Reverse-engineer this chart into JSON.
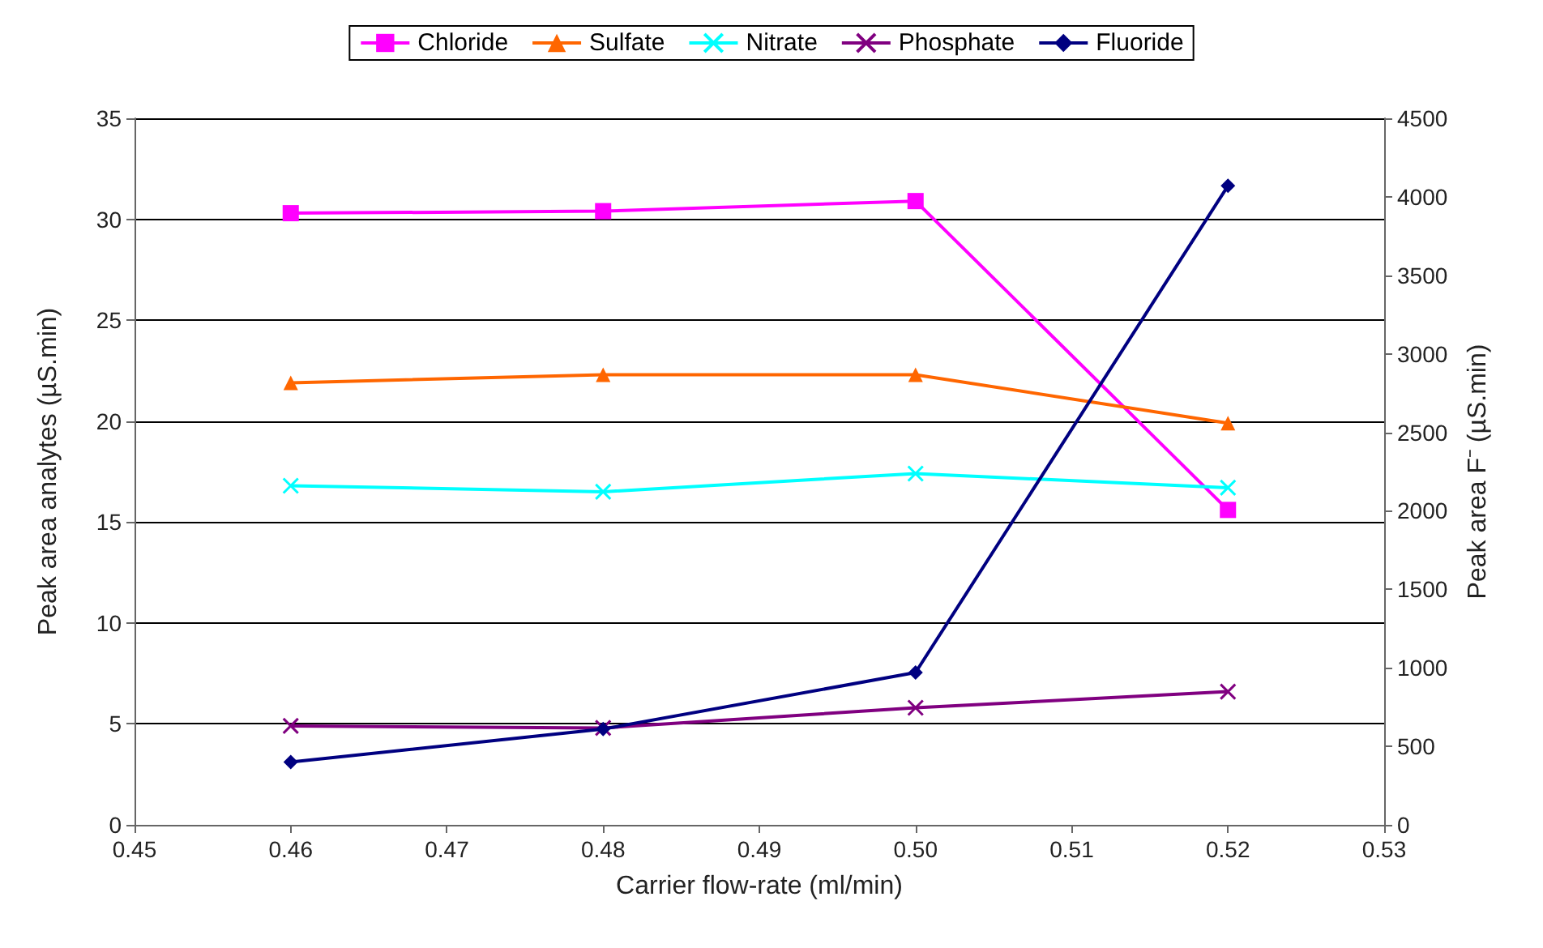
{
  "chart_data": {
    "type": "line",
    "xlabel": "Carrier flow-rate (ml/min)",
    "ylabel": "Peak area analytes (µS.min)",
    "y2label": "Peak area F⁻ (µS.min)",
    "x": [
      0.46,
      0.48,
      0.5,
      0.52
    ],
    "xlim": [
      0.45,
      0.53
    ],
    "xticks": [
      0.45,
      0.46,
      0.47,
      0.48,
      0.49,
      {
        "value": 0.5,
        "label": "0.50"
      },
      0.51,
      0.52,
      0.53
    ],
    "ylim": [
      0,
      35
    ],
    "yticks": [
      0,
      5,
      10,
      15,
      20,
      25,
      30,
      35
    ],
    "y2lim": [
      0,
      4500
    ],
    "y2ticks": [
      0,
      500,
      1000,
      1500,
      2000,
      2500,
      3000,
      3500,
      4000,
      4500
    ],
    "grid": "y",
    "legend": "top",
    "line_style": "solid",
    "series": [
      {
        "name": "Chloride",
        "color": "#ff00ff",
        "marker": "square",
        "values": [
          30.3,
          30.4,
          30.9,
          15.6
        ]
      },
      {
        "name": "Sulfate",
        "color": "#ff6600",
        "marker": "triangle",
        "values": [
          21.9,
          22.3,
          22.3,
          19.9
        ]
      },
      {
        "name": "Nitrate",
        "color": "#00ffff",
        "marker": "cross",
        "values": [
          16.8,
          16.5,
          17.4,
          16.7
        ]
      },
      {
        "name": "Phosphate",
        "color": "#800080",
        "marker": "cross",
        "values": [
          4.9,
          4.8,
          5.8,
          6.6
        ]
      },
      {
        "name": "Fluoride",
        "color": "#000080",
        "marker": "diamond",
        "axis": "y2",
        "values": [
          400,
          610,
          970,
          4070
        ]
      }
    ]
  }
}
